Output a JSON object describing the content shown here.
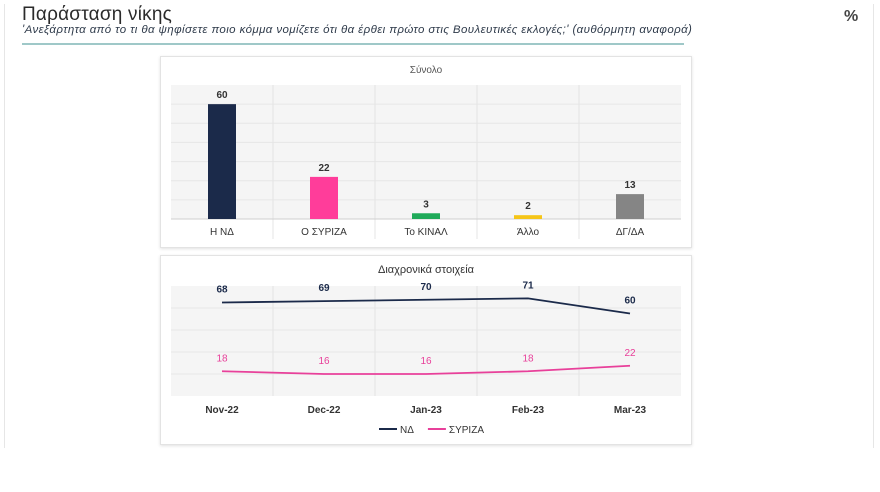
{
  "header": {
    "title": "Παράσταση νίκης",
    "subtitle": "'Ανεξάρτητα από το τι θα ψηφίσετε ποιο κόμμα νομίζετε ότι θα έρθει πρώτο στις Βουλευτικές εκλογές;' (αυθόρμητη αναφορά)",
    "unit": "%"
  },
  "chart_data": [
    {
      "type": "bar",
      "title": "Σύνολο",
      "categories": [
        "Η ΝΔ",
        "Ο ΣΥΡΙΖΑ",
        "Το ΚΙΝΑΛ",
        "Άλλο",
        "ΔΓ/ΔΑ"
      ],
      "values": [
        60,
        22,
        3,
        2,
        13
      ],
      "colors": [
        "#1b2a4a",
        "#ff3d9a",
        "#1faa59",
        "#f5c518",
        "#858585"
      ],
      "ylim": [
        0,
        70
      ],
      "grid": true
    },
    {
      "type": "line",
      "title": "Διαχρονικά στοιχεία",
      "x": [
        "Nov-22",
        "Dec-22",
        "Jan-23",
        "Feb-23",
        "Mar-23"
      ],
      "ylim": [
        0,
        80
      ],
      "grid": true,
      "legend": "bottom",
      "series": [
        {
          "name": "ΝΔ",
          "values": [
            68,
            69,
            70,
            71,
            60
          ],
          "color": "#1b2a4a"
        },
        {
          "name": "ΣΥΡΙΖΑ",
          "values": [
            18,
            16,
            16,
            18,
            22
          ],
          "color": "#e8409a"
        }
      ]
    }
  ]
}
